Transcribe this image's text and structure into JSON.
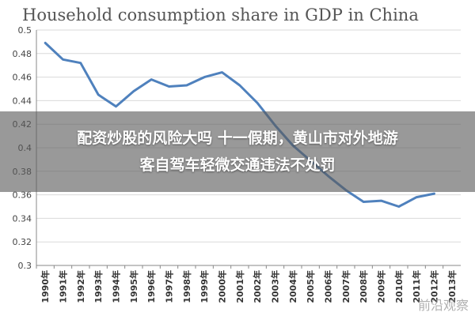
{
  "chart_data": {
    "type": "line",
    "title": "Household consumption share in GDP in China",
    "xlabel": "",
    "ylabel": "",
    "categories": [
      "1990年",
      "1991年",
      "1992年",
      "1993年",
      "1994年",
      "1995年",
      "1996年",
      "1997年",
      "1998年",
      "1999年",
      "2000年",
      "2001年",
      "2002年",
      "2003年",
      "2004年",
      "2005年",
      "2006年",
      "2007年",
      "2008年",
      "2009年",
      "2010年",
      "2011年",
      "2012年",
      "2013年"
    ],
    "series": [
      {
        "values": [
          0.489,
          0.475,
          0.472,
          0.445,
          0.435,
          0.448,
          0.458,
          0.452,
          0.453,
          0.46,
          0.464,
          0.453,
          0.438,
          0.419,
          0.402,
          0.389,
          0.376,
          0.364,
          0.354,
          0.355,
          0.35,
          0.358,
          0.361,
          null
        ],
        "color": "#4f81bd"
      }
    ],
    "yticks": [
      "0.3",
      "0.32",
      "0.34",
      "0.36",
      "0.38",
      "0.4",
      "0.42",
      "0.44",
      "0.46",
      "0.48",
      "0.5"
    ],
    "ylim": [
      0.3,
      0.5
    ],
    "grid": true
  },
  "overlay": {
    "line1": "配资炒股的风险大吗 十一假期，黄山市对外地游",
    "line2": "客自驾车轻微交通违法不处罚"
  },
  "watermark": "前沿观察"
}
